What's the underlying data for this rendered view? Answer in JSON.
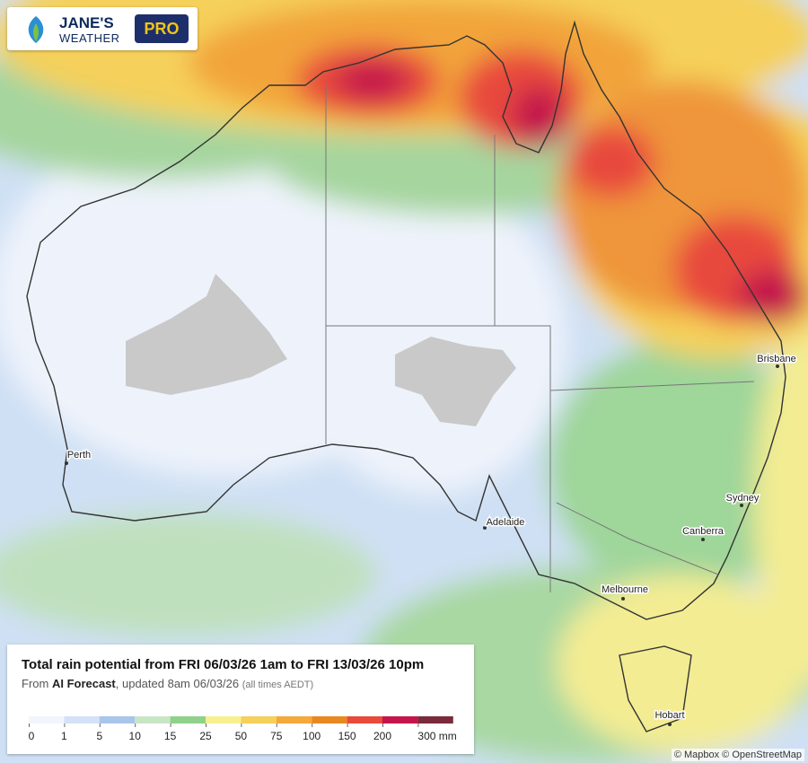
{
  "header": {
    "brand_line1": "JANE'S",
    "brand_line2": "WEATHER",
    "badge": "PRO"
  },
  "info": {
    "title": "Total rain potential from FRI 06/03/26 1am to FRI 13/03/26 10pm",
    "subtitle_prefix": "From ",
    "model": "AI Forecast",
    "updated": ", updated 8am 06/03/26",
    "note": "(all times AEDT)"
  },
  "legend": {
    "ticks": [
      "0",
      "1",
      "5",
      "10",
      "15",
      "25",
      "50",
      "75",
      "100",
      "150",
      "200",
      "300 mm"
    ],
    "colors": [
      "#f2f5fc",
      "#d4e1f6",
      "#a9c5ea",
      "#c8e6c4",
      "#8fd18a",
      "#f7f08e",
      "#f5d05a",
      "#f5a93a",
      "#e8891f",
      "#e84a3c",
      "#c4154c",
      "#7a2a3a"
    ]
  },
  "cities": [
    "Perth",
    "Adelaide",
    "Melbourne",
    "Canberra",
    "Sydney",
    "Brisbane",
    "Hobart"
  ],
  "attribution": "© Mapbox © OpenStreetMap"
}
